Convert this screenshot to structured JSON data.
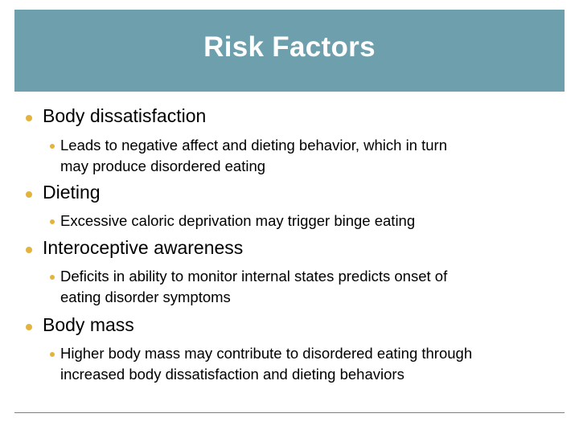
{
  "slide": {
    "title": "Risk Factors",
    "accent_color": "#6e9fad",
    "bullet_color": "#e3b33d",
    "items": [
      {
        "label": "Body dissatisfaction",
        "sub": [
          "Leads to negative affect and dieting behavior, which in turn",
          "may produce disordered eating"
        ]
      },
      {
        "label": "Dieting",
        "sub": [
          "Excessive caloric deprivation may trigger binge eating"
        ]
      },
      {
        "label": "Interoceptive awareness",
        "sub": [
          "Deficits in ability to monitor internal states predicts onset of",
          "eating disorder symptoms"
        ]
      },
      {
        "label": "Body mass",
        "sub": [
          "Higher body mass may contribute to disordered eating through",
          "increased body dissatisfaction and dieting behaviors"
        ]
      }
    ]
  }
}
